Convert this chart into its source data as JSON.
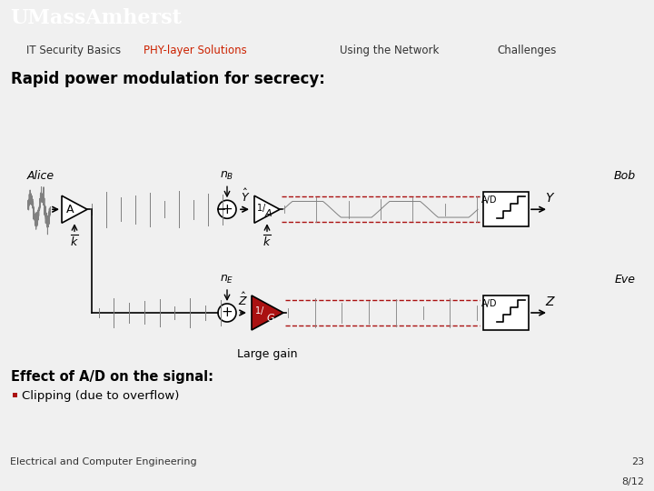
{
  "header_bg_color": "#8B1A1A",
  "header_text_color": "#FFFFFF",
  "header_logo_text": "UMassAmherst",
  "nav_items": [
    "IT Security Basics",
    "PHY-layer Solutions",
    "Using the Network",
    "Challenges"
  ],
  "nav_active": "PHY-layer Solutions",
  "nav_active_color": "#CC2200",
  "nav_inactive_color": "#333333",
  "nav_bg_color": "#D0D0D0",
  "slide_bg_color": "#F0F0F0",
  "title": "Rapid power modulation for secrecy:",
  "title_fontsize": 14,
  "title_bold": true,
  "footer_left": "Electrical and Computer Engineering",
  "footer_right_top": "23",
  "footer_right_bottom": "8/12",
  "footer_bg_color": "#D0D0D0",
  "effect_title": "Effect of A/D on the signal:",
  "effect_bullet": "Clipping (due to overflow)",
  "large_gain_text": "Large gain",
  "alice_label": "Alice",
  "bob_label": "Bob",
  "eve_label": "Eve",
  "red_color": "#AA1111",
  "dark_red": "#8B1A1A"
}
